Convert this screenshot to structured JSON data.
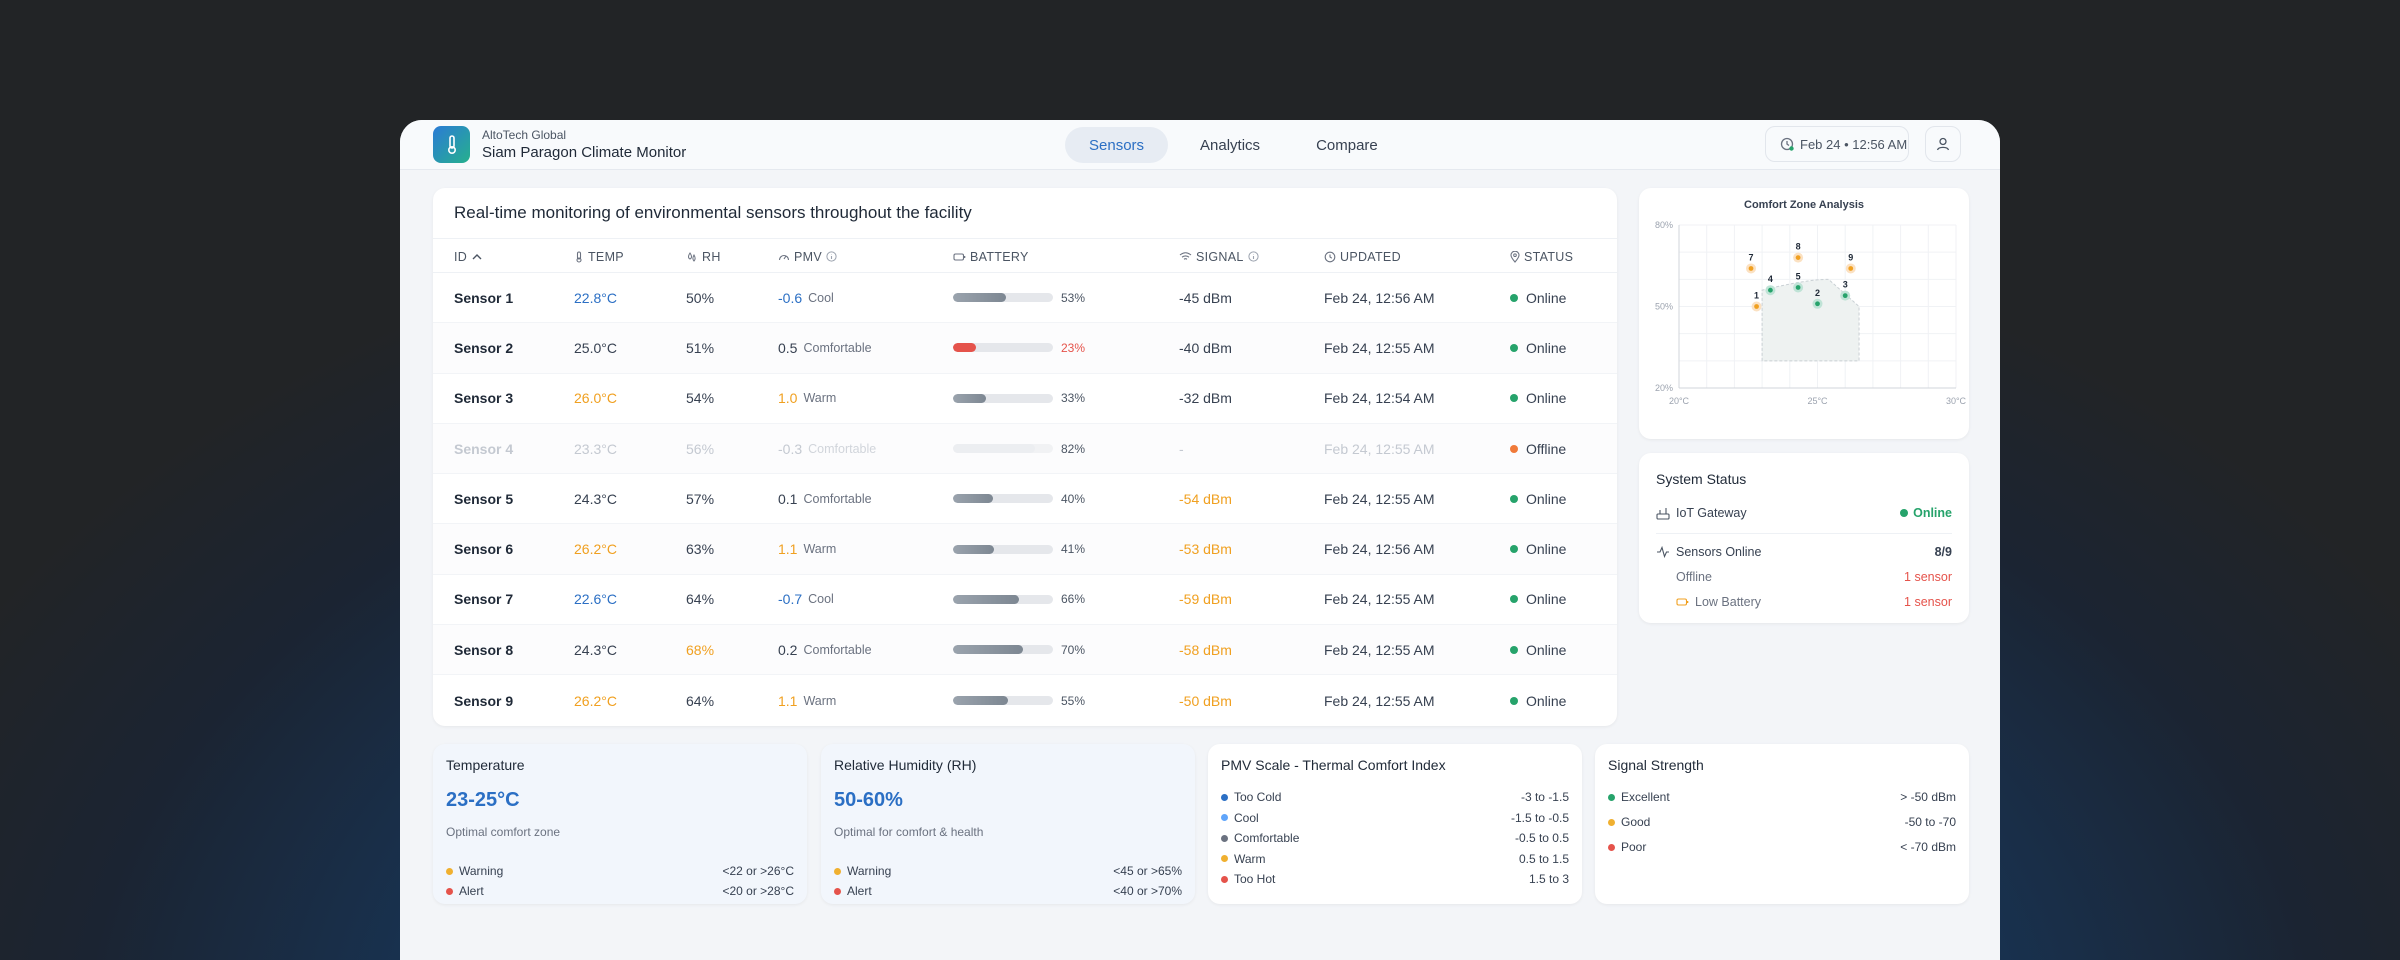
{
  "header": {
    "org": "AltoTech Global",
    "app_title": "Siam Paragon Climate Monitor",
    "tabs": [
      {
        "label": "Sensors",
        "active": true
      },
      {
        "label": "Analytics",
        "active": false
      },
      {
        "label": "Compare",
        "active": false
      }
    ],
    "datetime": "Feb 24 • 12:56 AM",
    "icons": {
      "logo": "thermometer-icon",
      "clock": "clock-icon",
      "user": "user-icon"
    }
  },
  "table": {
    "title": "Real-time monitoring of environmental sensors throughout the facility",
    "columns": {
      "id": "ID",
      "temp": "TEMP",
      "rh": "RH",
      "pmv": "PMV",
      "battery": "BATTERY",
      "signal": "SIGNAL",
      "updated": "UPDATED",
      "status": "STATUS"
    },
    "sort_indicator": "^",
    "rows": [
      {
        "id": "Sensor 1",
        "temp": "22.8°C",
        "temp_level": "cool",
        "rh": "50%",
        "rh_level": "normal",
        "pmv": "-0.6",
        "pmv_level": "cool",
        "pmv_label": "Cool",
        "battery": 53,
        "battery_text": "53%",
        "battery_low": false,
        "signal": "-45 dBm",
        "signal_level": "normal",
        "updated": "Feb 24, 12:56 AM",
        "status": "Online",
        "online": true
      },
      {
        "id": "Sensor 2",
        "temp": "25.0°C",
        "temp_level": "normal",
        "rh": "51%",
        "rh_level": "normal",
        "pmv": "0.5",
        "pmv_level": "normal",
        "pmv_label": "Comfortable",
        "battery": 23,
        "battery_text": "23%",
        "battery_low": true,
        "signal": "-40 dBm",
        "signal_level": "normal",
        "updated": "Feb 24, 12:55 AM",
        "status": "Online",
        "online": true
      },
      {
        "id": "Sensor 3",
        "temp": "26.0°C",
        "temp_level": "warm",
        "rh": "54%",
        "rh_level": "normal",
        "pmv": "1.0",
        "pmv_level": "warm",
        "pmv_label": "Warm",
        "battery": 33,
        "battery_text": "33%",
        "battery_low": false,
        "signal": "-32 dBm",
        "signal_level": "normal",
        "updated": "Feb 24, 12:54 AM",
        "status": "Online",
        "online": true
      },
      {
        "id": "Sensor 4",
        "temp": "23.3°C",
        "temp_level": "normal",
        "rh": "56%",
        "rh_level": "normal",
        "pmv": "-0.3",
        "pmv_level": "normal",
        "pmv_label": "Comfortable",
        "battery": 82,
        "battery_text": "82%",
        "battery_low": false,
        "signal": "-",
        "signal_level": "normal",
        "updated": "Feb 24, 12:55 AM",
        "status": "Offline",
        "online": false
      },
      {
        "id": "Sensor 5",
        "temp": "24.3°C",
        "temp_level": "normal",
        "rh": "57%",
        "rh_level": "normal",
        "pmv": "0.1",
        "pmv_level": "normal",
        "pmv_label": "Comfortable",
        "battery": 40,
        "battery_text": "40%",
        "battery_low": false,
        "signal": "-54 dBm",
        "signal_level": "warn",
        "updated": "Feb 24, 12:55 AM",
        "status": "Online",
        "online": true
      },
      {
        "id": "Sensor 6",
        "temp": "26.2°C",
        "temp_level": "warm",
        "rh": "63%",
        "rh_level": "normal",
        "pmv": "1.1",
        "pmv_level": "warm",
        "pmv_label": "Warm",
        "battery": 41,
        "battery_text": "41%",
        "battery_low": false,
        "signal": "-53 dBm",
        "signal_level": "warn",
        "updated": "Feb 24, 12:56 AM",
        "status": "Online",
        "online": true
      },
      {
        "id": "Sensor 7",
        "temp": "22.6°C",
        "temp_level": "cool",
        "rh": "64%",
        "rh_level": "normal",
        "pmv": "-0.7",
        "pmv_level": "cool",
        "pmv_label": "Cool",
        "battery": 66,
        "battery_text": "66%",
        "battery_low": false,
        "signal": "-59 dBm",
        "signal_level": "warn",
        "updated": "Feb 24, 12:55 AM",
        "status": "Online",
        "online": true
      },
      {
        "id": "Sensor 8",
        "temp": "24.3°C",
        "temp_level": "normal",
        "rh": "68%",
        "rh_level": "warm",
        "pmv": "0.2",
        "pmv_level": "normal",
        "pmv_label": "Comfortable",
        "battery": 70,
        "battery_text": "70%",
        "battery_low": false,
        "signal": "-58 dBm",
        "signal_level": "warn",
        "updated": "Feb 24, 12:55 AM",
        "status": "Online",
        "online": true
      },
      {
        "id": "Sensor 9",
        "temp": "26.2°C",
        "temp_level": "warm",
        "rh": "64%",
        "rh_level": "normal",
        "pmv": "1.1",
        "pmv_level": "warm",
        "pmv_label": "Warm",
        "battery": 55,
        "battery_text": "55%",
        "battery_low": false,
        "signal": "-50 dBm",
        "signal_level": "warn",
        "updated": "Feb 24, 12:55 AM",
        "status": "Online",
        "online": true
      }
    ]
  },
  "chart_data": {
    "type": "scatter",
    "title": "Comfort Zone Analysis",
    "xlabel": "",
    "ylabel": "",
    "xlim": [
      20,
      30
    ],
    "ylim": [
      20,
      80
    ],
    "x_ticks": [
      "20°C",
      "25°C",
      "30°C"
    ],
    "y_ticks": [
      "80%",
      "50%",
      "20%"
    ],
    "grid": true,
    "points": [
      {
        "label": "1",
        "x": 22.8,
        "y": 50,
        "state": "warn"
      },
      {
        "label": "2",
        "x": 25.0,
        "y": 51,
        "state": "ok"
      },
      {
        "label": "3",
        "x": 26.0,
        "y": 54,
        "state": "ok"
      },
      {
        "label": "4",
        "x": 23.3,
        "y": 56,
        "state": "ok"
      },
      {
        "label": "5",
        "x": 24.3,
        "y": 57,
        "state": "ok"
      },
      {
        "label": "7",
        "x": 22.6,
        "y": 64,
        "state": "warn"
      },
      {
        "label": "8",
        "x": 24.3,
        "y": 68,
        "state": "warn"
      },
      {
        "label": "9",
        "x": 26.2,
        "y": 64,
        "state": "warn"
      }
    ],
    "comfort_zone": {
      "x": [
        23,
        25.4,
        26.5
      ],
      "y": [
        30,
        60,
        50
      ]
    }
  },
  "system_status": {
    "title": "System Status",
    "gateway_label": "IoT Gateway",
    "gateway_status": "Online",
    "sensors_online_label": "Sensors Online",
    "sensors_online_value": "8/9",
    "offline_label": "Offline",
    "offline_value": "1 sensor",
    "low_battery_label": "Low Battery",
    "low_battery_value": "1 sensor"
  },
  "legends": {
    "temperature": {
      "title": "Temperature",
      "range": "23-25°C",
      "subtitle": "Optimal comfort zone",
      "items": [
        {
          "label": "Warning",
          "value": "<22 or >26°C",
          "color": "#f0b030"
        },
        {
          "label": "Alert",
          "value": "<20 or >28°C",
          "color": "#e5534b"
        }
      ]
    },
    "humidity": {
      "title": "Relative Humidity (RH)",
      "range": "50-60%",
      "subtitle": "Optimal for comfort & health",
      "items": [
        {
          "label": "Warning",
          "value": "<45 or >65%",
          "color": "#f0b030"
        },
        {
          "label": "Alert",
          "value": "<40 or >70%",
          "color": "#e5534b"
        }
      ]
    },
    "pmv": {
      "title": "PMV Scale - Thermal Comfort Index",
      "items": [
        {
          "label": "Too Cold",
          "value": "-3 to -1.5",
          "color": "#2b6fc4"
        },
        {
          "label": "Cool",
          "value": "-1.5 to -0.5",
          "color": "#60a5fa"
        },
        {
          "label": "Comfortable",
          "value": "-0.5 to 0.5",
          "color": "#6b7280"
        },
        {
          "label": "Warm",
          "value": "0.5 to 1.5",
          "color": "#f0b030"
        },
        {
          "label": "Too Hot",
          "value": "1.5 to 3",
          "color": "#e5534b"
        }
      ]
    },
    "signal": {
      "title": "Signal Strength",
      "items": [
        {
          "label": "Excellent",
          "value": "> -50 dBm",
          "color": "#26a36b"
        },
        {
          "label": "Good",
          "value": "-50 to -70",
          "color": "#f0b030"
        },
        {
          "label": "Poor",
          "value": "< -70 dBm",
          "color": "#e5534b"
        }
      ]
    }
  },
  "colors": {
    "accent": "#2b6fc4",
    "warn": "#f0a020",
    "alert": "#e5534b",
    "ok": "#26a36b",
    "offline": "#f07a3a"
  }
}
